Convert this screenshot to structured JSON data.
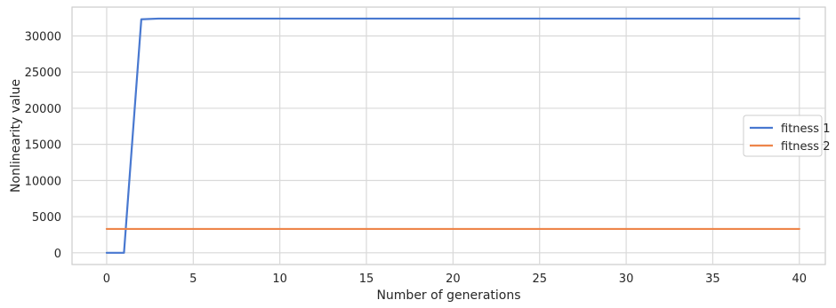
{
  "chart_data": {
    "type": "line",
    "xlabel": "Number of generations",
    "ylabel": "Nonlinearity value",
    "xlim": [
      -2,
      41.5
    ],
    "ylim": [
      -1620,
      33990
    ],
    "xticks": [
      0,
      5,
      10,
      15,
      20,
      25,
      30,
      35,
      40
    ],
    "yticks": [
      0,
      5000,
      10000,
      15000,
      20000,
      25000,
      30000
    ],
    "grid": true,
    "legend": {
      "placement": "center-right"
    },
    "series": [
      {
        "name": "fitness 1",
        "color": "#4878d0",
        "x": [
          0,
          1,
          2,
          3,
          4,
          5,
          6,
          7,
          8,
          9,
          10,
          11,
          12,
          13,
          14,
          15,
          16,
          17,
          18,
          19,
          20,
          21,
          22,
          23,
          24,
          25,
          26,
          27,
          28,
          29,
          30,
          31,
          32,
          33,
          34,
          35,
          36,
          37,
          38,
          39,
          40
        ],
        "y": [
          0,
          0,
          32300,
          32400,
          32400,
          32400,
          32400,
          32400,
          32400,
          32400,
          32400,
          32400,
          32400,
          32400,
          32400,
          32400,
          32400,
          32400,
          32400,
          32400,
          32400,
          32400,
          32400,
          32400,
          32400,
          32400,
          32400,
          32400,
          32400,
          32400,
          32400,
          32400,
          32400,
          32400,
          32400,
          32400,
          32400,
          32400,
          32400,
          32400,
          32400
        ]
      },
      {
        "name": "fitness 2",
        "color": "#ee854a",
        "x": [
          0,
          1,
          2,
          3,
          4,
          5,
          6,
          7,
          8,
          9,
          10,
          11,
          12,
          13,
          14,
          15,
          16,
          17,
          18,
          19,
          20,
          21,
          22,
          23,
          24,
          25,
          26,
          27,
          28,
          29,
          30,
          31,
          32,
          33,
          34,
          35,
          36,
          37,
          38,
          39,
          40
        ],
        "y": [
          3300,
          3300,
          3300,
          3300,
          3300,
          3300,
          3300,
          3300,
          3300,
          3300,
          3300,
          3300,
          3300,
          3300,
          3300,
          3300,
          3300,
          3300,
          3300,
          3300,
          3300,
          3300,
          3300,
          3300,
          3300,
          3300,
          3300,
          3300,
          3300,
          3300,
          3300,
          3300,
          3300,
          3300,
          3300,
          3300,
          3300,
          3300,
          3300,
          3300,
          3300
        ]
      }
    ]
  }
}
